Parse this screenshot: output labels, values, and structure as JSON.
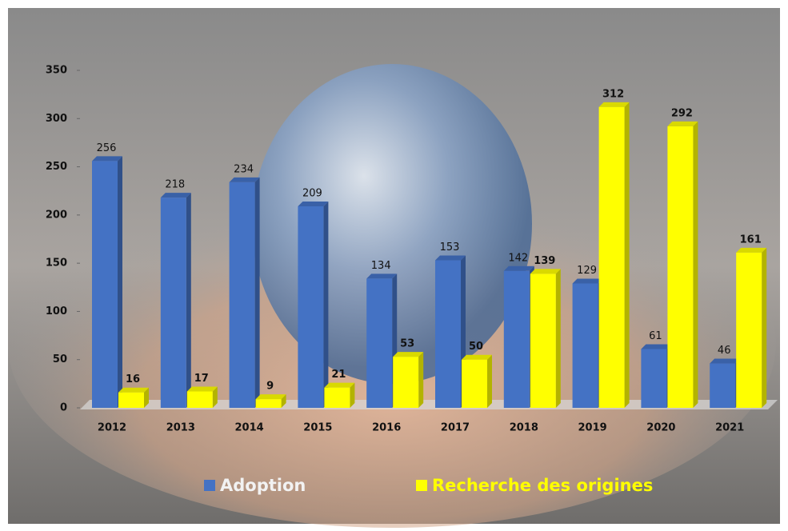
{
  "chart_data": {
    "type": "bar",
    "categories": [
      "2012",
      "2013",
      "2014",
      "2015",
      "2016",
      "2017",
      "2018",
      "2019",
      "2020",
      "2021"
    ],
    "series": [
      {
        "name": "Adoption",
        "color": "#4472c4",
        "values": [
          256,
          218,
          234,
          209,
          134,
          153,
          142,
          129,
          61,
          46
        ]
      },
      {
        "name": "Recherche des origines",
        "color": "#ffff00",
        "values": [
          16,
          17,
          9,
          21,
          53,
          50,
          139,
          312,
          292,
          161
        ]
      }
    ],
    "ylim": [
      0,
      350
    ],
    "yticks": [
      0,
      50,
      100,
      150,
      200,
      250,
      300,
      350
    ],
    "grid": false,
    "legend": "bottom"
  }
}
